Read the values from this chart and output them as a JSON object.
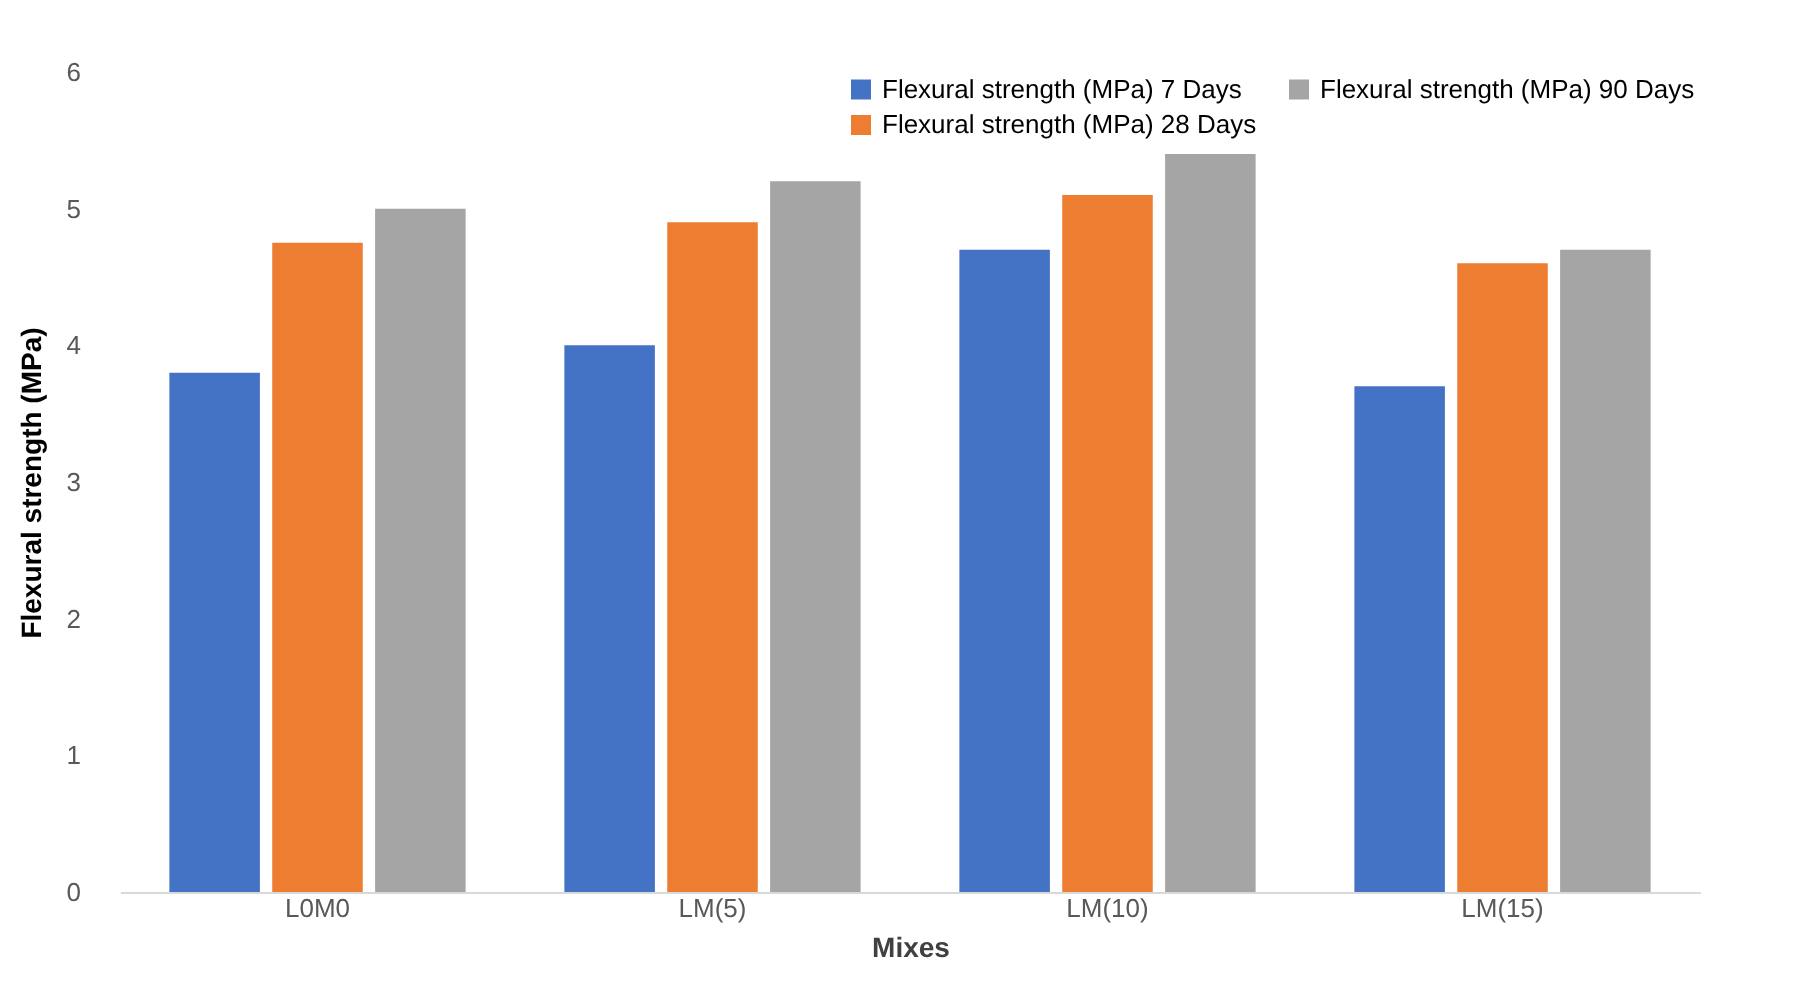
{
  "chart_data": {
    "type": "bar",
    "xlabel": "Mixes",
    "ylabel": "Flexural strength (MPa)",
    "categories": [
      "L0M0",
      "LM(5)",
      "LM(10)",
      "LM(15)"
    ],
    "series": [
      {
        "name": "Flexural strength (MPa) 7 Days",
        "color": "#4472c4",
        "values": [
          3.8,
          4.0,
          4.7,
          3.7
        ]
      },
      {
        "name": "Flexural strength (MPa) 28 Days",
        "color": "#ed7d31",
        "values": [
          4.75,
          4.9,
          5.1,
          4.6
        ]
      },
      {
        "name": "Flexural strength (MPa) 90 Days",
        "color": "#a5a5a5",
        "values": [
          5.0,
          5.2,
          5.4,
          4.7
        ]
      }
    ],
    "ylim": [
      0,
      6
    ],
    "yticks": [
      0,
      1,
      2,
      3,
      4,
      5,
      6
    ],
    "grid": false,
    "legend": "top right"
  }
}
